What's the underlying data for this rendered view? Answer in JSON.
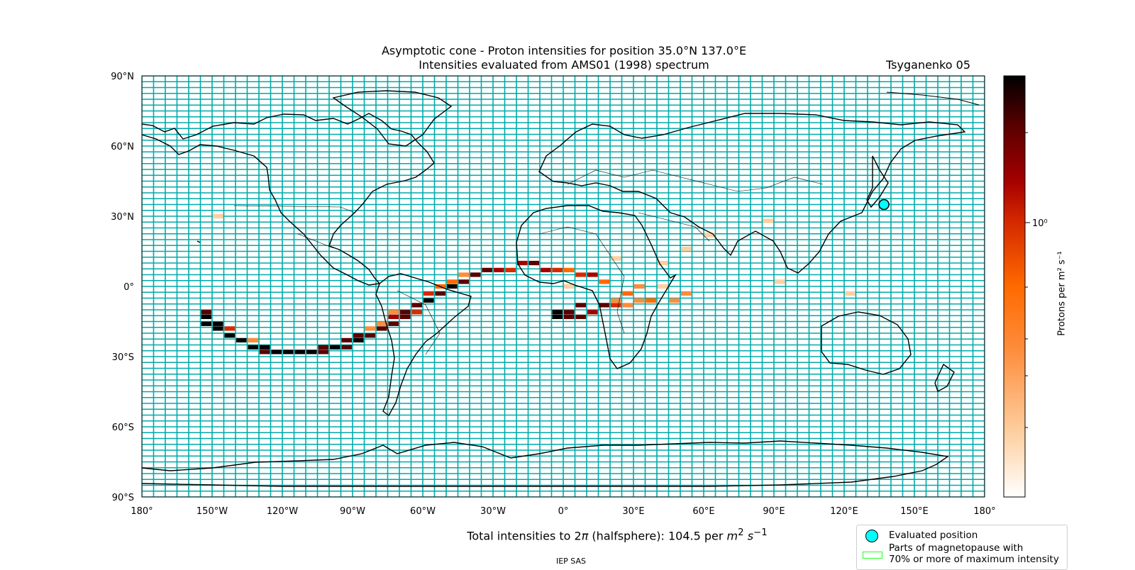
{
  "title_line1": "Asymptotic cone - Proton intensities for position 35.0°N 137.0°E",
  "title_line2": "Intensities evaluated from AMS01 (1998) spectrum",
  "model": "Tsyganenko 05",
  "total_intensity": {
    "prefix": "Total intensities to 2",
    "pi": "π",
    "middle": " (halfsphere): 104.5 per ",
    "unit_m": "m",
    "unit_m_exp": "2",
    "unit_s": "s",
    "unit_s_exp": "−1"
  },
  "credit": "IEP SAS",
  "colorbar": {
    "label": "Protons per m² s⁻¹",
    "tick_label": "10⁰",
    "scale": "log",
    "colormap": [
      "#ffffff",
      "#fdd0a2",
      "#fd8d3c",
      "#ff6a00",
      "#d62a00",
      "#a50000",
      "#5a0000",
      "#000000"
    ]
  },
  "legend": {
    "evaluated_position": "Evaluated position",
    "magnetopause_line1": "Parts of magnetopause with",
    "magnetopause_line2": "70% or more of maximum intensity"
  },
  "map": {
    "grid_color": "#00aaaa",
    "lat_labels": [
      "90°N",
      "60°N",
      "30°N",
      "0°",
      "30°S",
      "60°S",
      "90°S"
    ],
    "lon_labels": [
      "180°",
      "150°W",
      "120°W",
      "90°W",
      "60°W",
      "30°W",
      "0°",
      "30°E",
      "60°E",
      "90°E",
      "120°E",
      "150°E",
      "180°"
    ],
    "evaluated_position": {
      "lat": 35.0,
      "lon": 137.0
    }
  },
  "chart_data": {
    "type": "heatmap",
    "x": "longitude",
    "y": "latitude",
    "cells": [
      {
        "lon": -155,
        "lat": -11,
        "level": 6
      },
      {
        "lon": -155,
        "lat": -13,
        "level": 7
      },
      {
        "lon": -155,
        "lat": -16,
        "level": 7
      },
      {
        "lon": -150,
        "lat": -16,
        "level": 7
      },
      {
        "lon": -150,
        "lat": -18,
        "level": 7
      },
      {
        "lon": -145,
        "lat": -18,
        "level": 4
      },
      {
        "lon": -145,
        "lat": -21,
        "level": 7
      },
      {
        "lon": -140,
        "lat": -23,
        "level": 7
      },
      {
        "lon": -135,
        "lat": -23,
        "level": 2
      },
      {
        "lon": -135,
        "lat": -26,
        "level": 7
      },
      {
        "lon": -130,
        "lat": -26,
        "level": 7
      },
      {
        "lon": -130,
        "lat": -28,
        "level": 6
      },
      {
        "lon": -125,
        "lat": -28,
        "level": 7
      },
      {
        "lon": -120,
        "lat": -28,
        "level": 7
      },
      {
        "lon": -115,
        "lat": -28,
        "level": 7
      },
      {
        "lon": -110,
        "lat": -28,
        "level": 7
      },
      {
        "lon": -105,
        "lat": -28,
        "level": 6
      },
      {
        "lon": -105,
        "lat": -26,
        "level": 6
      },
      {
        "lon": -100,
        "lat": -26,
        "level": 7
      },
      {
        "lon": -95,
        "lat": -26,
        "level": 6
      },
      {
        "lon": -95,
        "lat": -23,
        "level": 6
      },
      {
        "lon": -90,
        "lat": -23,
        "level": 7
      },
      {
        "lon": -90,
        "lat": -21,
        "level": 6
      },
      {
        "lon": -85,
        "lat": -21,
        "level": 6
      },
      {
        "lon": -85,
        "lat": -18,
        "level": 2
      },
      {
        "lon": -80,
        "lat": -18,
        "level": 6
      },
      {
        "lon": -80,
        "lat": -16,
        "level": 2
      },
      {
        "lon": -75,
        "lat": -16,
        "level": 6
      },
      {
        "lon": -75,
        "lat": -13,
        "level": 5
      },
      {
        "lon": -70,
        "lat": -13,
        "level": 6
      },
      {
        "lon": -70,
        "lat": -11,
        "level": 6
      },
      {
        "lon": -75,
        "lat": -11,
        "level": 2
      },
      {
        "lon": -65,
        "lat": -11,
        "level": 4
      },
      {
        "lon": -65,
        "lat": -8,
        "level": 6
      },
      {
        "lon": -60,
        "lat": -6,
        "level": 7
      },
      {
        "lon": -60,
        "lat": -3,
        "level": 4
      },
      {
        "lon": -55,
        "lat": -3,
        "level": 6
      },
      {
        "lon": -55,
        "lat": 0,
        "level": 3
      },
      {
        "lon": -50,
        "lat": 0,
        "level": 7
      },
      {
        "lon": -50,
        "lat": 2,
        "level": 3
      },
      {
        "lon": -45,
        "lat": 2,
        "level": 6
      },
      {
        "lon": -45,
        "lat": 5,
        "level": 2
      },
      {
        "lon": -40,
        "lat": 5,
        "level": 6
      },
      {
        "lon": -35,
        "lat": 7,
        "level": 6
      },
      {
        "lon": -30,
        "lat": 7,
        "level": 5
      },
      {
        "lon": -25,
        "lat": 7,
        "level": 4
      },
      {
        "lon": -20,
        "lat": 10,
        "level": 5
      },
      {
        "lon": -15,
        "lat": 10,
        "level": 6
      },
      {
        "lon": -10,
        "lat": 7,
        "level": 5
      },
      {
        "lon": -5,
        "lat": 7,
        "level": 4
      },
      {
        "lon": 0,
        "lat": 7,
        "level": 3
      },
      {
        "lon": 5,
        "lat": 5,
        "level": 4
      },
      {
        "lon": 10,
        "lat": 5,
        "level": 5
      },
      {
        "lon": 15,
        "lat": 2,
        "level": 3
      },
      {
        "lon": 0,
        "lat": 0,
        "level": 1
      },
      {
        "lon": -5,
        "lat": -11,
        "level": 7
      },
      {
        "lon": -5,
        "lat": -13,
        "level": 7
      },
      {
        "lon": 0,
        "lat": -11,
        "level": 6
      },
      {
        "lon": 0,
        "lat": -13,
        "level": 6
      },
      {
        "lon": 5,
        "lat": -13,
        "level": 6
      },
      {
        "lon": 5,
        "lat": -8,
        "level": 6
      },
      {
        "lon": 10,
        "lat": -11,
        "level": 5
      },
      {
        "lon": 15,
        "lat": -8,
        "level": 6
      },
      {
        "lon": 20,
        "lat": -8,
        "level": 4
      },
      {
        "lon": 20,
        "lat": -6,
        "level": 2
      },
      {
        "lon": 25,
        "lat": -3,
        "level": 3
      },
      {
        "lon": 25,
        "lat": -8,
        "level": 2
      },
      {
        "lon": 30,
        "lat": -6,
        "level": 2
      },
      {
        "lon": 30,
        "lat": 0,
        "level": 2
      },
      {
        "lon": 35,
        "lat": -6,
        "level": 3
      },
      {
        "lon": 40,
        "lat": 0,
        "level": 1
      },
      {
        "lon": 45,
        "lat": -6,
        "level": 2
      },
      {
        "lon": 50,
        "lat": -3,
        "level": 2
      },
      {
        "lon": 40,
        "lat": 10,
        "level": 1
      },
      {
        "lon": 50,
        "lat": 16,
        "level": 1
      },
      {
        "lon": 60,
        "lat": 22,
        "level": 1
      },
      {
        "lon": 20,
        "lat": 12,
        "level": 1
      },
      {
        "lon": 90,
        "lat": 2,
        "level": 1
      },
      {
        "lon": 120,
        "lat": -3,
        "level": 1
      },
      {
        "lon": -150,
        "lat": 30,
        "level": 1
      },
      {
        "lon": 85,
        "lat": 28,
        "level": 1
      }
    ]
  }
}
